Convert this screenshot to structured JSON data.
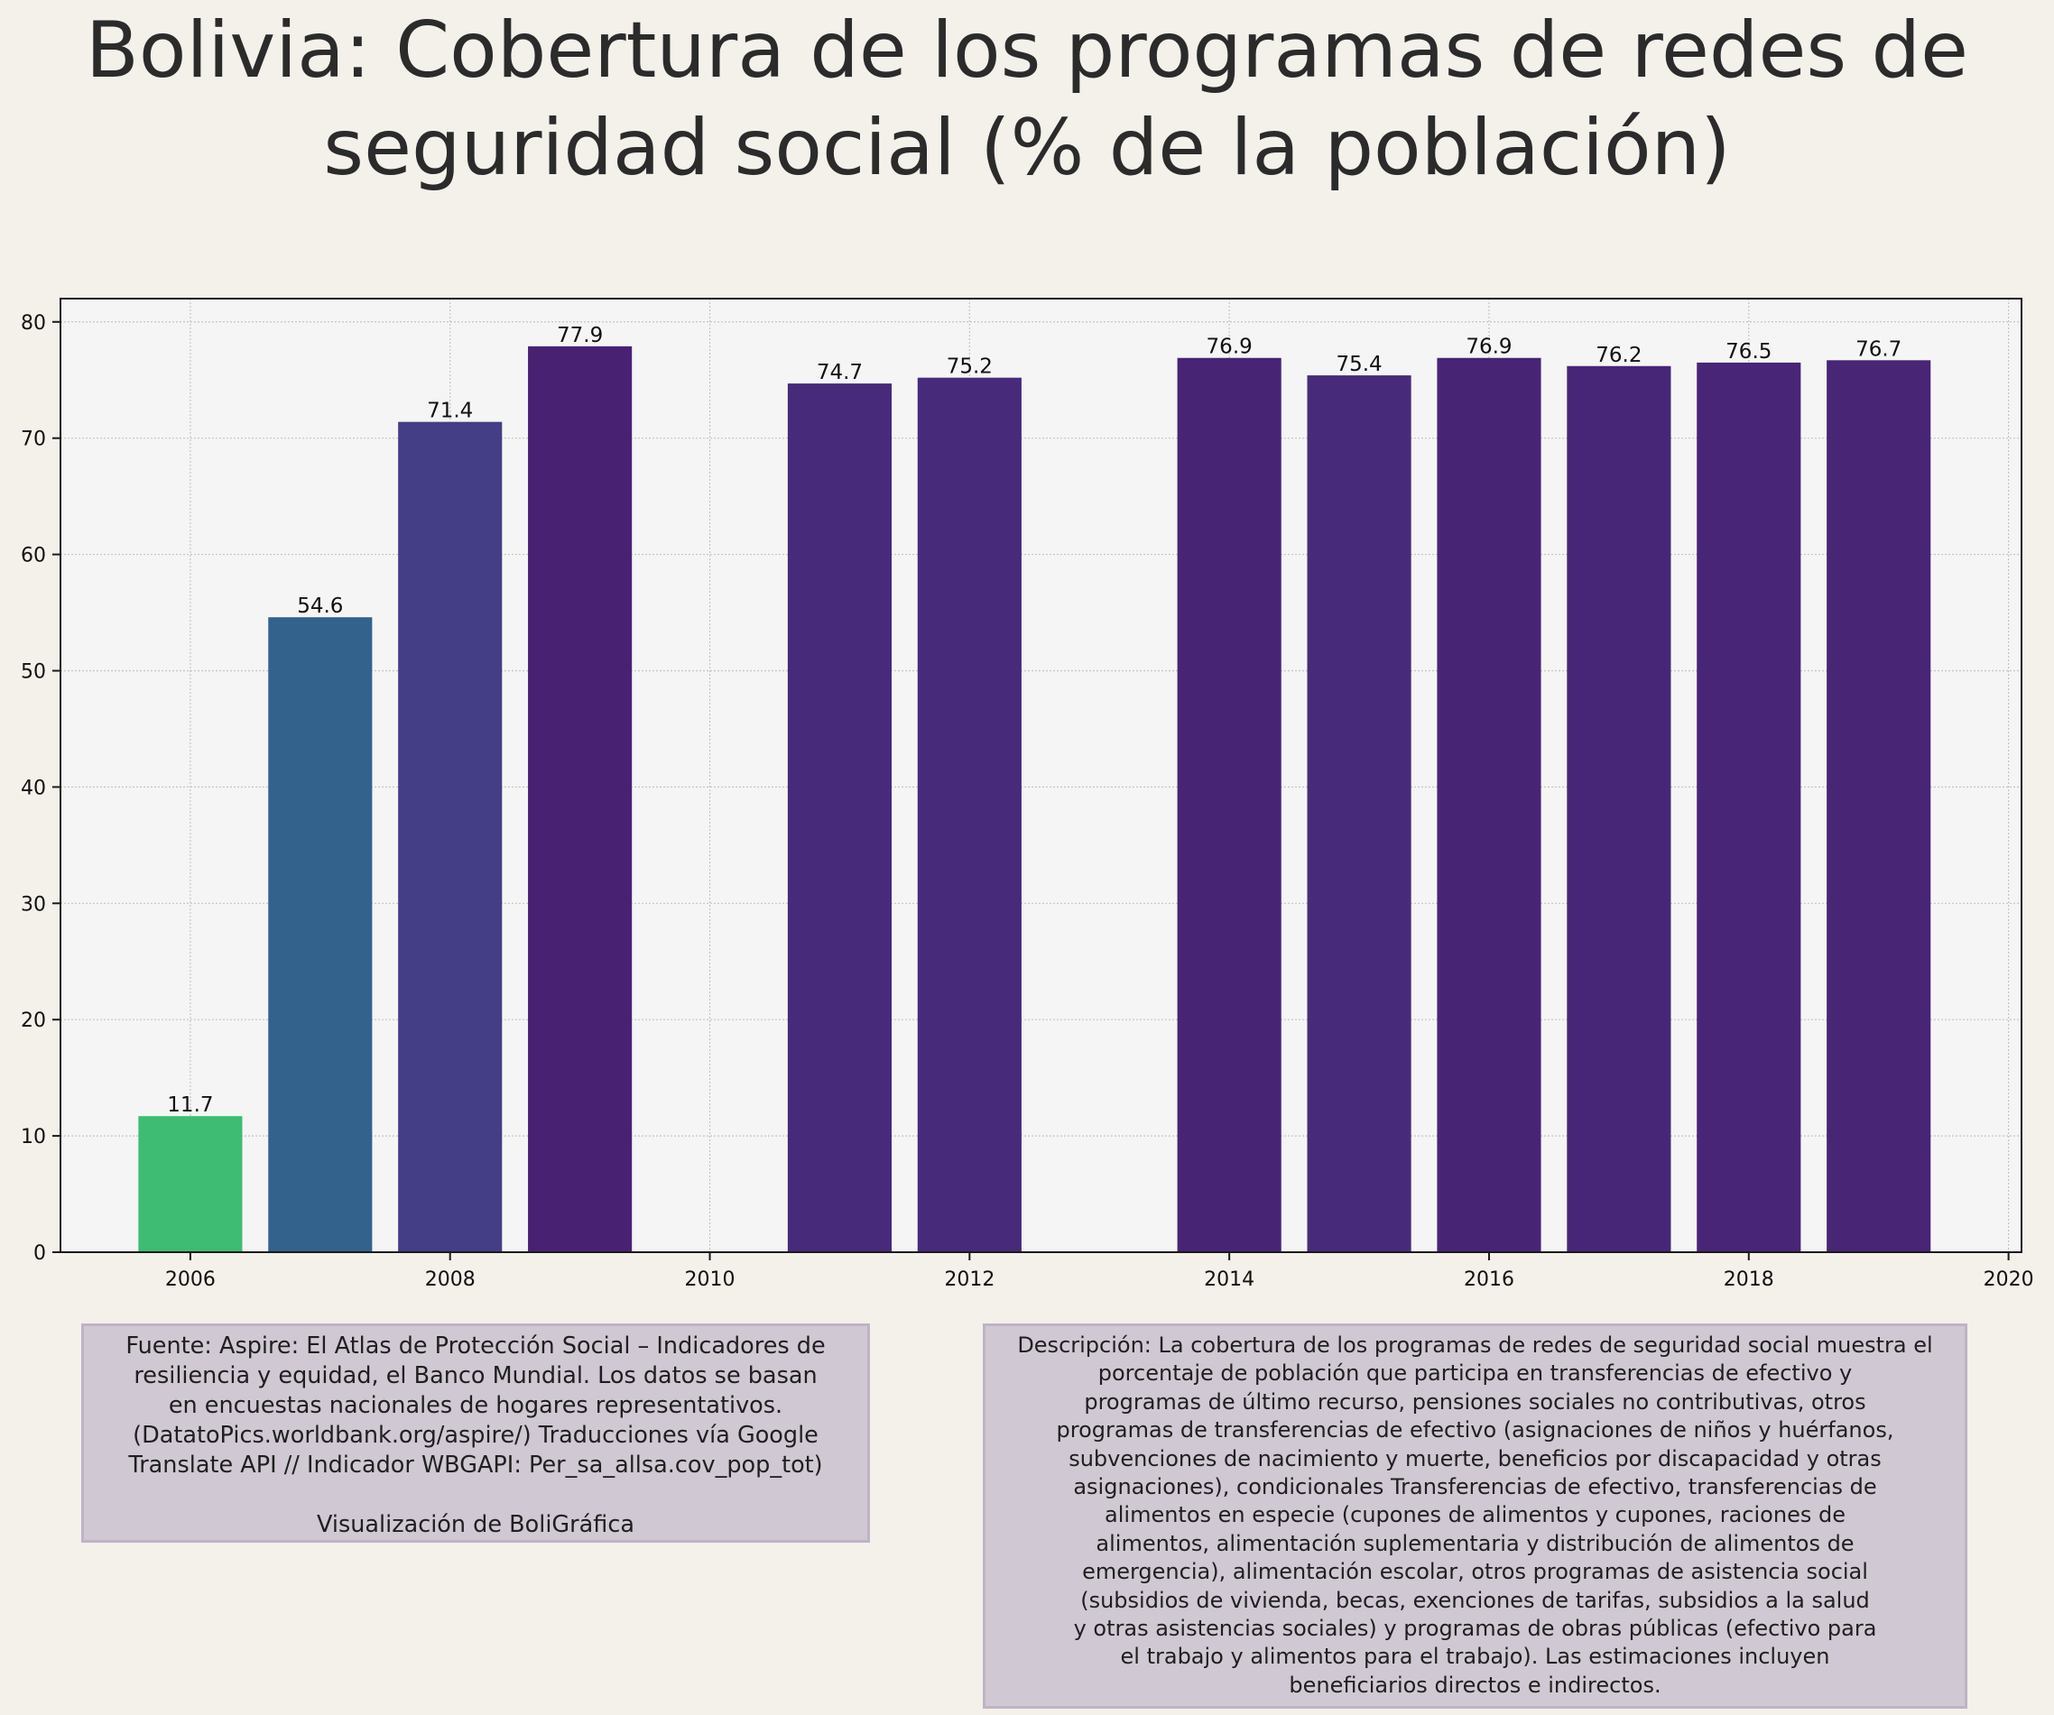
{
  "title_lines": [
    "Bolivia:  Cobertura de los programas de redes de",
    "seguridad social (% de la población)"
  ],
  "chart_data": {
    "type": "bar",
    "title": "Bolivia:  Cobertura de los programas de redes de seguridad social (% de la población)",
    "xlabel": "",
    "ylabel": "",
    "x": [
      2006,
      2007,
      2008,
      2009,
      2011,
      2012,
      2014,
      2015,
      2016,
      2017,
      2018,
      2019
    ],
    "values": [
      11.7,
      54.6,
      71.4,
      77.9,
      74.7,
      75.2,
      76.9,
      75.4,
      76.9,
      76.2,
      76.5,
      76.7
    ],
    "value_labels": [
      "11.7",
      "54.6",
      "71.4",
      "77.9",
      "74.7",
      "75.2",
      "76.9",
      "75.4",
      "76.9",
      "76.2",
      "76.5",
      "76.7"
    ],
    "bar_colors": [
      "#3fbc73",
      "#33638d",
      "#433e85",
      "#482173",
      "#472a7a",
      "#472a7a",
      "#482475",
      "#472b7a",
      "#482475",
      "#482677",
      "#482576",
      "#482575"
    ],
    "xlim": [
      2005,
      2020.1
    ],
    "ylim": [
      0,
      82
    ],
    "x_ticks": [
      "2006",
      "2008",
      "2010",
      "2012",
      "2014",
      "2016",
      "2018",
      "2020"
    ],
    "y_ticks": [
      "0",
      "10",
      "20",
      "30",
      "40",
      "50",
      "60",
      "70",
      "80"
    ],
    "grid": true,
    "legend": "none"
  },
  "source_text": "Fuente: Aspire: El Atlas de Protección Social – Indicadores de\nresiliencia y equidad, el Banco Mundial. Los datos se basan\nen encuestas nacionales de hogares representativos.\n(DatatoPics.worldbank.org/aspire/) Traducciones vía Google\nTranslate API // Indicador WBGAPI: Per_sa_allsa.cov_pop_tot)\n\nVisualización de BoliGráfica",
  "description_text": "Descripción: La cobertura de los programas de redes de seguridad social muestra el\nporcentaje de población que participa en transferencias de efectivo y\nprogramas de último recurso, pensiones sociales no contributivas, otros\nprogramas de transferencias de efectivo (asignaciones de niños y huérfanos,\nsubvenciones de nacimiento y muerte, beneficios por discapacidad y otras\nasignaciones), condicionales Transferencias de efectivo, transferencias de\nalimentos en especie (cupones de alimentos y cupones, raciones de\nalimentos, alimentación suplementaria y distribución de alimentos de\nemergencia), alimentación escolar, otros programas de asistencia social\n(subsidios de vivienda, becas, exenciones de tarifas, subsidios a la salud\ny otras asistencias sociales) y programas de obras públicas (efectivo para\nel trabajo y alimentos para el trabajo). Las estimaciones incluyen\nbeneficiarios directos e indirectos."
}
